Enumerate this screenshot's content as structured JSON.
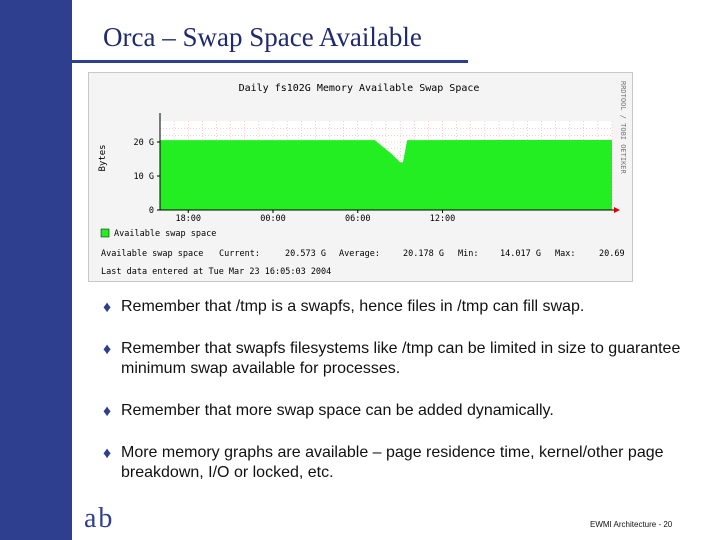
{
  "slide": {
    "title": "Orca – Swap Space Available",
    "bullets": [
      {
        "text": "Remember that /tmp is a swapfs, hence files in /tmp can fill swap."
      },
      {
        "text": "Remember that swapfs filesystems like /tmp can be limited in size to guarantee minimum swap available for processes."
      },
      {
        "text": "Remember that more swap space can be added dynamically."
      },
      {
        "text": "More memory graphs are available – page residence time, kernel/other page breakdown, I/O or locked, etc."
      }
    ],
    "logo_text": "ab",
    "footer": "EWMI Architecture - 20",
    "colors": {
      "sidebar": "#2e3f8f",
      "title": "#1f2a6e",
      "area": "#22ee22"
    }
  },
  "chart_data": {
    "type": "area",
    "title": "Daily fs102G Memory Available Swap Space",
    "ylabel": "Bytes",
    "side_label": "RRDTOOL / TOBI OETIKER",
    "ylim": [
      0,
      25
    ],
    "y_ticks": [
      {
        "label": "0",
        "value": 0
      },
      {
        "label": "10 G",
        "value": 10
      },
      {
        "label": "20 G",
        "value": 20
      }
    ],
    "x_range": [
      0,
      32
    ],
    "x_ticks": [
      {
        "label": "18:00",
        "value": 2
      },
      {
        "label": "00:00",
        "value": 8
      },
      {
        "label": "06:00",
        "value": 14
      },
      {
        "label": "12:00",
        "value": 20
      }
    ],
    "series": [
      {
        "name": "Available swap space",
        "x": [
          0,
          15.2,
          16.4,
          17.0,
          17.2,
          17.5,
          32
        ],
        "y": [
          20.55,
          20.55,
          16.5,
          14.0,
          14.0,
          20.55,
          20.6
        ]
      }
    ],
    "legend_label": "Available swap space",
    "stats": {
      "name": "Available swap space",
      "current_label": "Current:",
      "current": "20.573 G",
      "average_label": "Average:",
      "average": "20.178 G",
      "min_label": "Min:",
      "min": "14.017 G",
      "max_label": "Max:",
      "max": "20.69"
    },
    "last_entry": "Last data entered at Tue Mar 23 16:05:03 2004",
    "grid": true
  }
}
